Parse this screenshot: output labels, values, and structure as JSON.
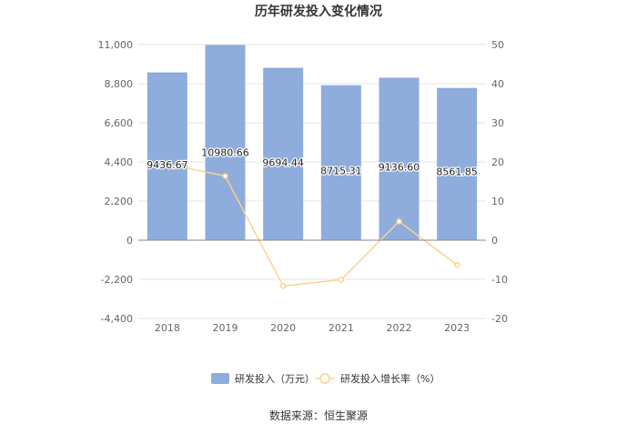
{
  "chart_data": {
    "type": "bar",
    "title": "历年研发投入变化情况",
    "categories": [
      "2018",
      "2019",
      "2020",
      "2021",
      "2022",
      "2023"
    ],
    "series": [
      {
        "name": "研发投入（万元）",
        "type": "bar",
        "axis": "left",
        "color": "#8eacdc",
        "values": [
          9436.67,
          10980.66,
          9694.44,
          8715.31,
          9136.6,
          8561.85
        ],
        "labels": [
          "9436.67",
          "10980.66",
          "9694.44",
          "8715.31",
          "9136.60",
          "8561.85"
        ]
      },
      {
        "name": "研发投入增长率（%）",
        "type": "line",
        "axis": "right",
        "color": "#fbd28f",
        "values": [
          19.5,
          16.4,
          -11.7,
          -10.1,
          4.8,
          -6.3
        ]
      }
    ],
    "y_left": {
      "min": -4400,
      "max": 11000,
      "ticks": [
        11000,
        8800,
        6600,
        4400,
        2200,
        0,
        -2200,
        -4400
      ],
      "tick_labels": [
        "11,000",
        "8,800",
        "6,600",
        "4,400",
        "2,200",
        "0",
        "-2,200",
        "-4,400"
      ]
    },
    "y_right": {
      "min": -20,
      "max": 50,
      "ticks": [
        50,
        40,
        30,
        20,
        10,
        0,
        -10,
        -20
      ],
      "tick_labels": [
        "50",
        "40",
        "30",
        "20",
        "10",
        "0",
        "-10",
        "-20"
      ]
    },
    "grid": true,
    "legend_position": "bottom",
    "source": "数据来源：恒生聚源"
  }
}
